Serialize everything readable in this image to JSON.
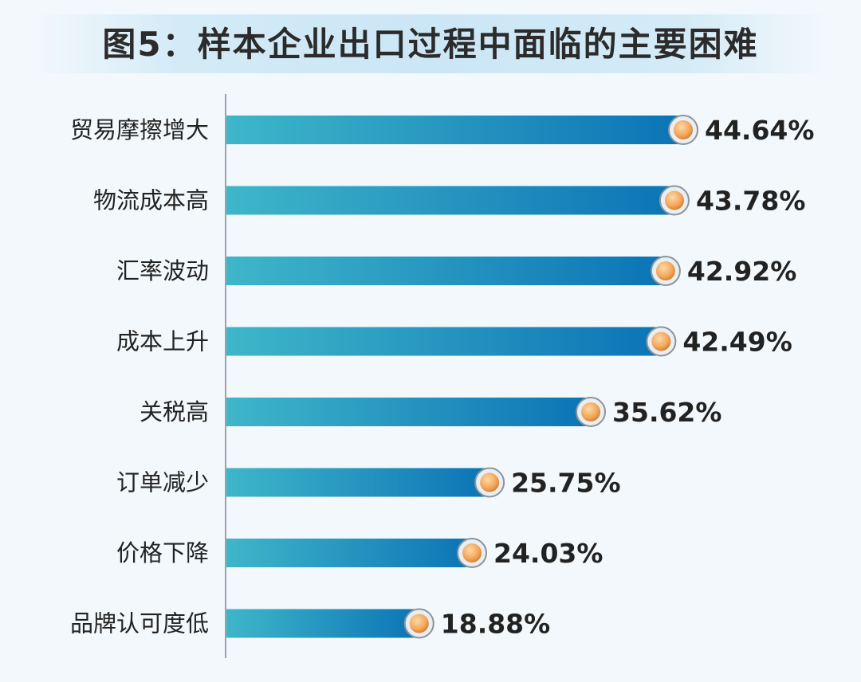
{
  "title": "图5：样本企业出口过程中面临的主要困难",
  "colors": {
    "bar_start": "#3fb6c9",
    "bar_end": "#0b74b6",
    "marker": "#f2a65a",
    "label_text": "#222222"
  },
  "chart_data": {
    "type": "bar",
    "orientation": "horizontal",
    "title": "图5：样本企业出口过程中面临的主要困难",
    "categories": [
      "贸易摩擦增大",
      "物流成本高",
      "汇率波动",
      "成本上升",
      "关税高",
      "订单减少",
      "价格下降",
      "品牌认可度低"
    ],
    "values": [
      44.64,
      43.78,
      42.92,
      42.49,
      35.62,
      25.75,
      24.03,
      18.88
    ],
    "value_labels": [
      "44.64%",
      "43.78%",
      "42.92%",
      "42.49%",
      "35.62%",
      "25.75%",
      "24.03%",
      "18.88%"
    ],
    "unit": "%",
    "xlim": [
      0,
      50
    ],
    "grid": false,
    "legend": "none"
  }
}
